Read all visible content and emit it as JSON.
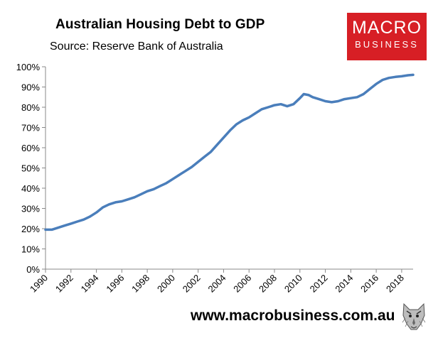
{
  "header": {
    "title": "Australian Housing Debt to GDP",
    "subtitle": "Source: Reserve Bank of Australia"
  },
  "logo": {
    "line1": "MACRO",
    "line2": "BUSINESS",
    "color": "#d71f25"
  },
  "footer": {
    "website": "www.macrobusiness.com.au"
  },
  "mascot_icon": "wolf-head-icon",
  "colors": {
    "line": "#4a7ebb",
    "axis": "#888888"
  },
  "chart_data": {
    "type": "line",
    "title": "Australian Housing Debt to GDP",
    "subtitle": "Source: Reserve Bank of Australia",
    "xlabel": "",
    "ylabel": "",
    "xlim": [
      1990,
      2018.9
    ],
    "ylim": [
      0,
      100
    ],
    "y_unit": "%",
    "grid": false,
    "legend": "none",
    "x_ticks": [
      1990,
      1992,
      1994,
      1996,
      1998,
      2000,
      2002,
      2004,
      2006,
      2008,
      2010,
      2012,
      2014,
      2016,
      2018
    ],
    "y_ticks": [
      "0%",
      "10%",
      "20%",
      "30%",
      "40%",
      "50%",
      "60%",
      "70%",
      "80%",
      "90%",
      "100%"
    ],
    "series": [
      {
        "x": [
          1990.0,
          1990.5,
          1991.0,
          1991.5,
          1992.0,
          1992.5,
          1993.0,
          1993.5,
          1994.0,
          1994.5,
          1995.0,
          1995.5,
          1996.0,
          1996.5,
          1997.0,
          1997.5,
          1998.0,
          1998.5,
          1999.0,
          1999.5,
          2000.0,
          2000.5,
          2001.0,
          2001.5,
          2002.0,
          2002.5,
          2003.0,
          2003.5,
          2004.0,
          2004.5,
          2005.0,
          2005.5,
          2006.0,
          2006.5,
          2007.0,
          2007.5,
          2008.0,
          2008.5,
          2009.0,
          2009.5,
          2010.0,
          2010.3,
          2010.7,
          2011.0,
          2011.5,
          2012.0,
          2012.5,
          2013.0,
          2013.5,
          2014.0,
          2014.5,
          2015.0,
          2015.5,
          2016.0,
          2016.5,
          2017.0,
          2017.5,
          2018.0,
          2018.5,
          2018.9
        ],
        "values": [
          19.5,
          19.5,
          20.5,
          21.5,
          22.5,
          23.5,
          24.5,
          26.0,
          28.0,
          30.5,
          32.0,
          33.0,
          33.5,
          34.5,
          35.5,
          37.0,
          38.5,
          39.5,
          41.0,
          42.5,
          44.5,
          46.5,
          48.5,
          50.5,
          53.0,
          55.5,
          58.0,
          61.5,
          65.0,
          68.5,
          71.5,
          73.5,
          75.0,
          77.0,
          79.0,
          80.0,
          81.0,
          81.5,
          80.5,
          81.5,
          84.5,
          86.5,
          86.0,
          85.0,
          84.0,
          83.0,
          82.5,
          83.0,
          84.0,
          84.5,
          85.0,
          86.5,
          89.0,
          91.5,
          93.5,
          94.5,
          95.0,
          95.3,
          95.8,
          96.0
        ]
      }
    ]
  }
}
